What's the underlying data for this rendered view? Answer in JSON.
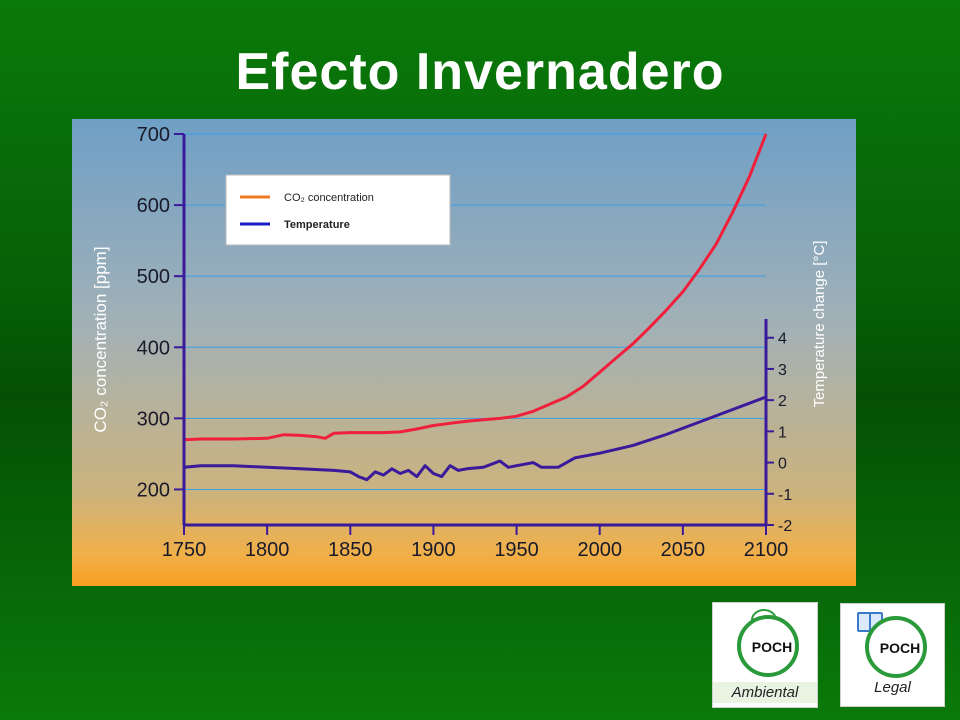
{
  "slide": {
    "title": "Efecto Invernadero"
  },
  "chart_data": {
    "type": "line",
    "title": "",
    "xlabel": "",
    "ylabel": "CO₂ concentration [ppm]",
    "y2label": "Temperature change [°C]",
    "xlim": [
      1750,
      2100
    ],
    "ylim": [
      150,
      700
    ],
    "y2lim": [
      -2,
      4.6
    ],
    "x_ticks": [
      "1750",
      "1800",
      "1850",
      "1900",
      "1950",
      "2000",
      "2050",
      "2100"
    ],
    "y_ticks": [
      "200",
      "300",
      "400",
      "500",
      "600",
      "700"
    ],
    "y2_ticks": [
      "-2",
      "-1",
      "0",
      "1",
      "2",
      "3",
      "4"
    ],
    "grid": "horizontal",
    "legend": {
      "placement": "top-left"
    },
    "colors": {
      "co2": "#f0203c",
      "temperature": "#3a1a9a",
      "axes": "#3a1a9a",
      "legend_co2": "#f07a20",
      "legend_temp": "#1a20c8"
    },
    "series": [
      {
        "name": "CO₂ concentration",
        "axis": "left",
        "x": [
          1750,
          1760,
          1780,
          1800,
          1810,
          1820,
          1830,
          1835,
          1840,
          1850,
          1860,
          1870,
          1880,
          1890,
          1900,
          1910,
          1920,
          1930,
          1940,
          1950,
          1960,
          1970,
          1980,
          1990,
          2000,
          2010,
          2020,
          2030,
          2040,
          2050,
          2060,
          2070,
          2080,
          2090,
          2100
        ],
        "values": [
          270,
          271,
          271,
          272,
          277,
          276,
          274,
          272,
          279,
          280,
          280,
          280,
          281,
          285,
          290,
          293,
          296,
          298,
          300,
          303,
          310,
          320,
          330,
          345,
          365,
          385,
          405,
          428,
          452,
          478,
          510,
          545,
          590,
          640,
          700
        ]
      },
      {
        "name": "Temperature",
        "axis": "right",
        "x": [
          1750,
          1760,
          1780,
          1800,
          1820,
          1840,
          1850,
          1855,
          1860,
          1865,
          1870,
          1875,
          1880,
          1885,
          1890,
          1895,
          1900,
          1905,
          1910,
          1915,
          1920,
          1930,
          1940,
          1945,
          1950,
          1960,
          1965,
          1975,
          1985,
          2000,
          2020,
          2040,
          2060,
          2080,
          2100
        ],
        "values": [
          -0.15,
          -0.1,
          -0.1,
          -0.15,
          -0.2,
          -0.25,
          -0.3,
          -0.45,
          -0.55,
          -0.3,
          -0.4,
          -0.2,
          -0.35,
          -0.25,
          -0.45,
          -0.1,
          -0.35,
          -0.45,
          -0.1,
          -0.25,
          -0.2,
          -0.15,
          0.05,
          -0.15,
          -0.1,
          0.0,
          -0.15,
          -0.15,
          0.15,
          0.3,
          0.55,
          0.9,
          1.3,
          1.7,
          2.1
        ]
      }
    ]
  },
  "logos": [
    {
      "word": "POCH",
      "sub": "Ambiental"
    },
    {
      "word": "POCH",
      "sub": "Legal"
    }
  ]
}
